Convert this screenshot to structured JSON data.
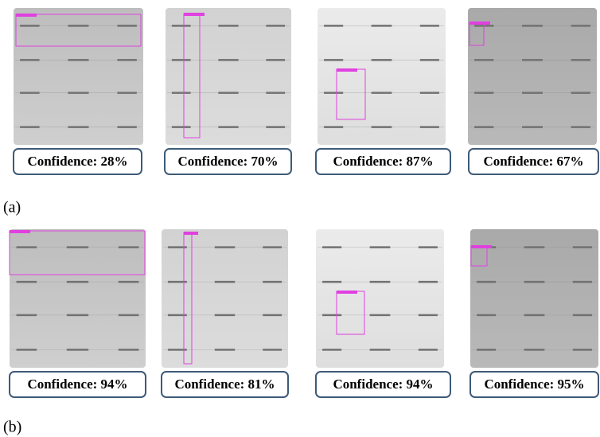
{
  "panels": [
    {
      "label": "(a)",
      "items": [
        {
          "confidence": "Confidence: 28%"
        },
        {
          "confidence": "Confidence: 70%"
        },
        {
          "confidence": "Confidence: 87%"
        },
        {
          "confidence": "Confidence: 67%"
        }
      ]
    },
    {
      "label": "(b)",
      "items": [
        {
          "confidence": "Confidence: 94%"
        },
        {
          "confidence": "Confidence: 81%"
        },
        {
          "confidence": "Confidence: 94%"
        },
        {
          "confidence": "Confidence: 95%"
        }
      ]
    }
  ]
}
